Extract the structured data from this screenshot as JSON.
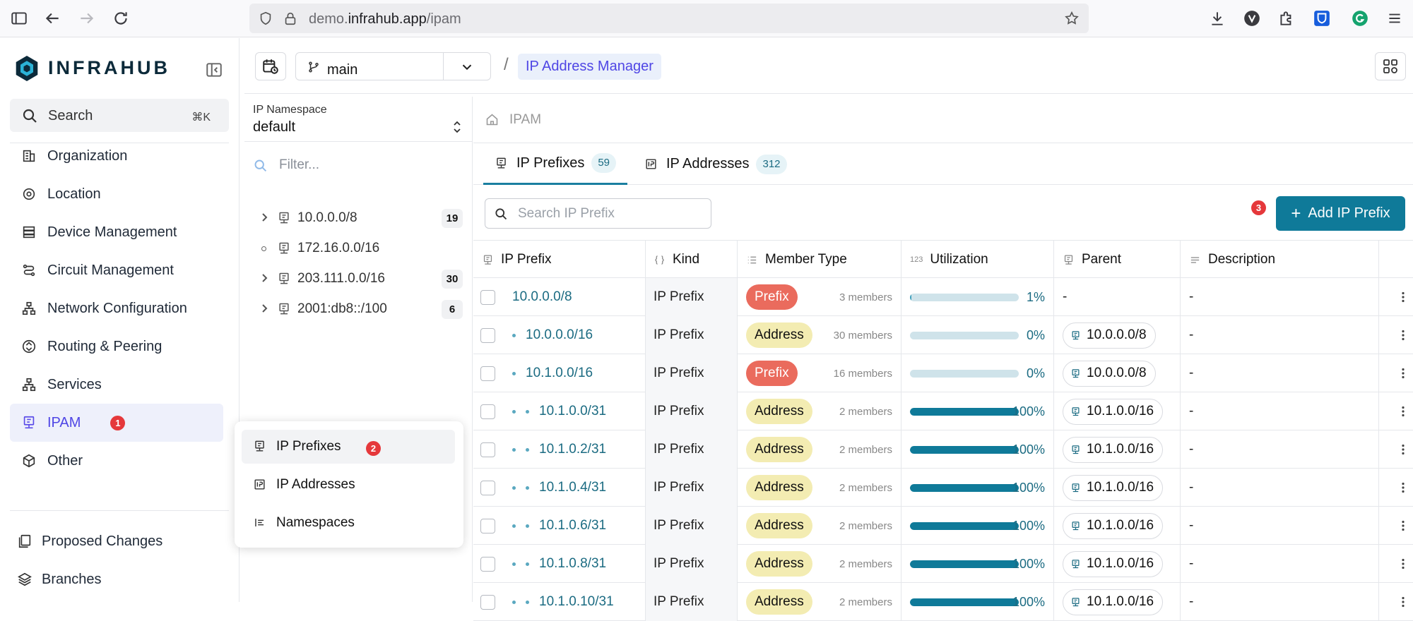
{
  "browser": {
    "url_prefix": "demo.",
    "url_domain": "infrahub.app",
    "url_path": "/ipam"
  },
  "sidebar": {
    "brand": "INFRAHUB",
    "search_label": "Search",
    "search_shortcut": "⌘K",
    "items": [
      {
        "label": "Organization",
        "icon": "organization-icon"
      },
      {
        "label": "Location",
        "icon": "location-icon"
      },
      {
        "label": "Device Management",
        "icon": "device-icon"
      },
      {
        "label": "Circuit Management",
        "icon": "circuit-icon"
      },
      {
        "label": "Network Configuration",
        "icon": "network-icon"
      },
      {
        "label": "Routing & Peering",
        "icon": "routing-icon"
      },
      {
        "label": "Services",
        "icon": "services-icon"
      },
      {
        "label": "IPAM",
        "icon": "ipam-icon",
        "badge": "1"
      },
      {
        "label": "Other",
        "icon": "other-icon"
      }
    ],
    "bottom_items": [
      {
        "label": "Proposed Changes"
      },
      {
        "label": "Branches"
      }
    ]
  },
  "submenu": {
    "items": [
      {
        "label": "IP Prefixes",
        "badge": "2"
      },
      {
        "label": "IP Addresses"
      },
      {
        "label": "Namespaces"
      }
    ]
  },
  "topbar": {
    "branch": "main",
    "crumb_sep": "/",
    "crumb": "IP Address Manager"
  },
  "namespace": {
    "label": "IP Namespace",
    "value": "default",
    "filter_placeholder": "Filter...",
    "tree": [
      {
        "label": "10.0.0.0/8",
        "count": "19",
        "expandable": true
      },
      {
        "label": "172.16.0.0/16",
        "count": "",
        "expandable": false
      },
      {
        "label": "203.111.0.0/16",
        "count": "30",
        "expandable": true
      },
      {
        "label": "2001:db8::/100",
        "count": "6",
        "expandable": true
      }
    ]
  },
  "main": {
    "breadcrumb": "IPAM",
    "tabs": [
      {
        "label": "IP Prefixes",
        "count": "59"
      },
      {
        "label": "IP Addresses",
        "count": "312"
      }
    ],
    "search_placeholder": "Search IP Prefix",
    "add_button": "Add IP Prefix",
    "add_badge": "3",
    "accent": "#0f7a99",
    "columns": [
      "IP Prefix",
      "Kind",
      "Member Type",
      "Utilization",
      "Parent",
      "Description"
    ],
    "rows": [
      {
        "prefix": "10.0.0.0/8",
        "level": 0,
        "kind": "IP Prefix",
        "member_type": "Prefix",
        "members": "3 members",
        "util_pct": 1,
        "util": "1%",
        "parent": "-",
        "desc": "-"
      },
      {
        "prefix": "10.0.0.0/16",
        "level": 1,
        "kind": "IP Prefix",
        "member_type": "Address",
        "members": "30 members",
        "util_pct": 0,
        "util": "0%",
        "parent": "10.0.0.0/8",
        "desc": "-"
      },
      {
        "prefix": "10.1.0.0/16",
        "level": 1,
        "kind": "IP Prefix",
        "member_type": "Prefix",
        "members": "16 members",
        "util_pct": 0,
        "util": "0%",
        "parent": "10.0.0.0/8",
        "desc": "-"
      },
      {
        "prefix": "10.1.0.0/31",
        "level": 2,
        "kind": "IP Prefix",
        "member_type": "Address",
        "members": "2 members",
        "util_pct": 100,
        "util": "100%",
        "parent": "10.1.0.0/16",
        "desc": "-"
      },
      {
        "prefix": "10.1.0.2/31",
        "level": 2,
        "kind": "IP Prefix",
        "member_type": "Address",
        "members": "2 members",
        "util_pct": 100,
        "util": "100%",
        "parent": "10.1.0.0/16",
        "desc": "-"
      },
      {
        "prefix": "10.1.0.4/31",
        "level": 2,
        "kind": "IP Prefix",
        "member_type": "Address",
        "members": "2 members",
        "util_pct": 100,
        "util": "100%",
        "parent": "10.1.0.0/16",
        "desc": "-"
      },
      {
        "prefix": "10.1.0.6/31",
        "level": 2,
        "kind": "IP Prefix",
        "member_type": "Address",
        "members": "2 members",
        "util_pct": 100,
        "util": "100%",
        "parent": "10.1.0.0/16",
        "desc": "-"
      },
      {
        "prefix": "10.1.0.8/31",
        "level": 2,
        "kind": "IP Prefix",
        "member_type": "Address",
        "members": "2 members",
        "util_pct": 100,
        "util": "100%",
        "parent": "10.1.0.0/16",
        "desc": "-"
      },
      {
        "prefix": "10.1.0.10/31",
        "level": 2,
        "kind": "IP Prefix",
        "member_type": "Address",
        "members": "2 members",
        "util_pct": 100,
        "util": "100%",
        "parent": "10.1.0.0/16",
        "desc": "-"
      }
    ]
  }
}
